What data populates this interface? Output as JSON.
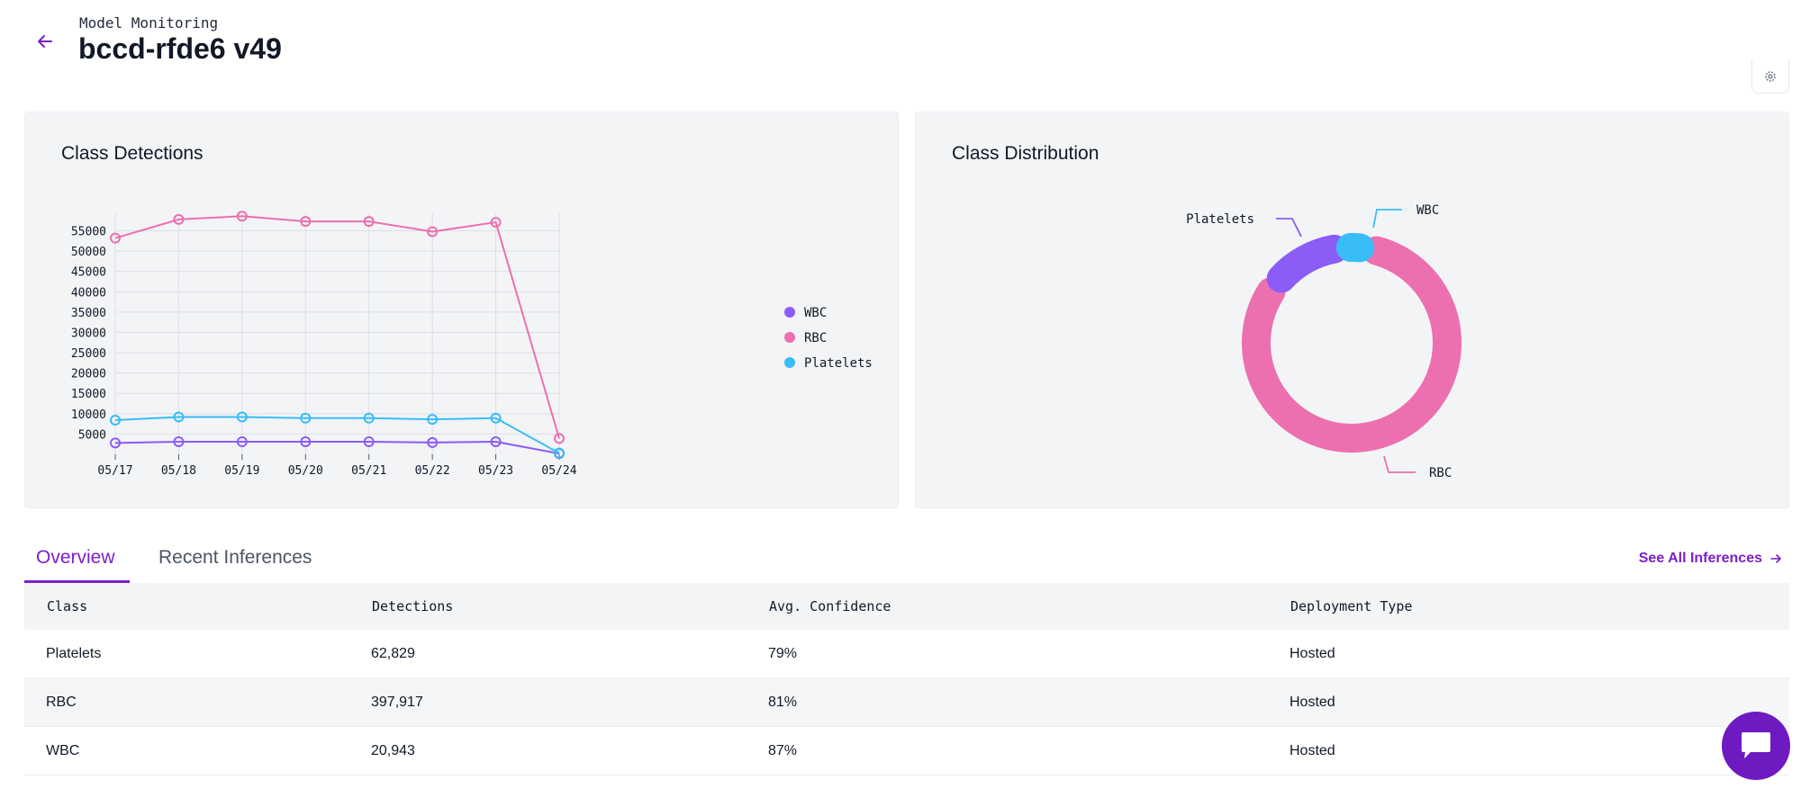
{
  "header": {
    "eyebrow": "Model Monitoring",
    "title": "bccd-rfde6 v49"
  },
  "detections_card": {
    "title": "Class Detections"
  },
  "distribution_card": {
    "title": "Class Distribution"
  },
  "tabs": [
    {
      "label": "Overview",
      "active": true
    },
    {
      "label": "Recent Inferences",
      "active": false
    }
  ],
  "see_all_label": "See All Inferences",
  "table": {
    "headers": [
      "Class",
      "Detections",
      "Avg. Confidence",
      "Deployment Type"
    ],
    "rows": [
      [
        "Platelets",
        "62,829",
        "79%",
        "Hosted"
      ],
      [
        "RBC",
        "397,917",
        "81%",
        "Hosted"
      ],
      [
        "WBC",
        "20,943",
        "87%",
        "Hosted"
      ]
    ]
  },
  "colors": {
    "accent": "#7c1fc9",
    "wbc": "#8b5cf6",
    "rbc": "#ec6fb0",
    "platelets": "#38bdf8"
  },
  "chart_data": [
    {
      "type": "line",
      "title": "Class Detections",
      "categories": [
        "05/17",
        "05/18",
        "05/19",
        "05/20",
        "05/21",
        "05/22",
        "05/23",
        "05/24"
      ],
      "ylim": [
        0,
        58000
      ],
      "yticks": [
        "55000",
        "50000",
        "45000",
        "40000",
        "35000",
        "30000",
        "25000",
        "20000",
        "15000",
        "10000",
        "5000"
      ],
      "grid": true,
      "legend_position": "right",
      "series": [
        {
          "name": "WBC",
          "color": "#8b5cf6",
          "values": [
            2800,
            3100,
            3100,
            3100,
            3100,
            2900,
            3100,
            200
          ]
        },
        {
          "name": "RBC",
          "color": "#ec6fb0",
          "values": [
            53200,
            57800,
            58600,
            57300,
            57300,
            54800,
            57100,
            3900
          ]
        },
        {
          "name": "Platelets",
          "color": "#38bdf8",
          "values": [
            8400,
            9200,
            9200,
            8900,
            8900,
            8600,
            8900,
            300
          ]
        }
      ]
    },
    {
      "type": "pie",
      "title": "Class Distribution",
      "donut": true,
      "slices": [
        {
          "label": "RBC",
          "value": 397917,
          "color": "#ec6fb0"
        },
        {
          "label": "Platelets",
          "value": 62829,
          "color": "#8b5cf6"
        },
        {
          "label": "WBC",
          "value": 20943,
          "color": "#38bdf8"
        }
      ]
    }
  ]
}
